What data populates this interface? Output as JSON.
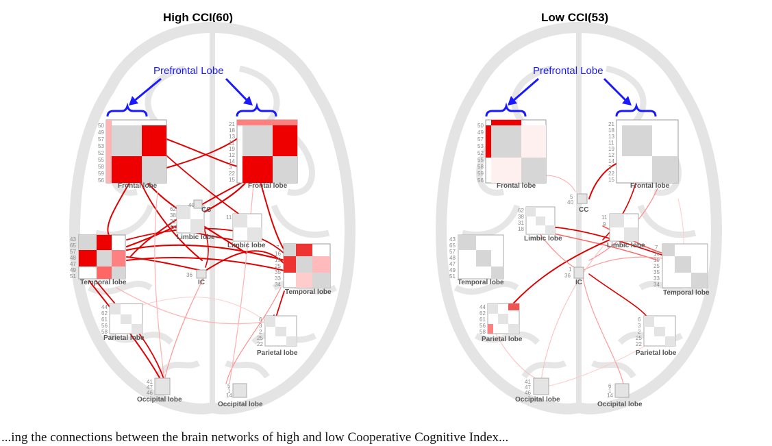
{
  "panels": [
    {
      "title": "High CCI(60)",
      "annotation": "Prefrontal Lobe",
      "regions": [
        {
          "label": "Frontal lobe",
          "ticks": [
            "50",
            "49",
            "57",
            "53",
            "52",
            "55",
            "58",
            "59",
            "56"
          ]
        },
        {
          "label": "Frontal lobe",
          "ticks": [
            "21",
            "18",
            "13",
            "11",
            "19",
            "12",
            "14",
            "3",
            "22",
            "15"
          ]
        },
        {
          "label": "Limbic lobe",
          "ticks": [
            "62",
            "38",
            "31",
            "18"
          ]
        },
        {
          "label": "Limbic lobe",
          "ticks": [
            "11"
          ]
        },
        {
          "label": "CC",
          "ticks": [
            "40"
          ]
        },
        {
          "label": "Temporal lobe",
          "ticks": [
            "43",
            "65",
            "57",
            "48",
            "47",
            "49",
            "51"
          ]
        },
        {
          "label": "Temporal lobe",
          "ticks": [
            "7",
            "16",
            "19",
            "25",
            "35",
            "33",
            "34"
          ]
        },
        {
          "label": "IC",
          "ticks": [
            "36"
          ]
        },
        {
          "label": "Parietal lobe",
          "ticks": [
            "44",
            "62",
            "61",
            "56",
            "58"
          ]
        },
        {
          "label": "Parietal lobe",
          "ticks": [
            "6",
            "3",
            "2",
            "25",
            "22"
          ]
        },
        {
          "label": "Occipital lobe",
          "ticks": [
            "41",
            "47",
            "46"
          ]
        },
        {
          "label": "Occipital lobe",
          "ticks": [
            "5",
            "1",
            "14"
          ]
        }
      ]
    },
    {
      "title": "Low CCI(53)",
      "annotation": "Prefrontal Lobe",
      "regions": [
        {
          "label": "Frontal lobe",
          "ticks": [
            "50",
            "49",
            "57",
            "53",
            "52",
            "55",
            "58",
            "59",
            "56"
          ]
        },
        {
          "label": "Frontal lobe",
          "ticks": [
            "21",
            "18",
            "13",
            "11",
            "19",
            "12",
            "14",
            "3",
            "22",
            "15"
          ]
        },
        {
          "label": "CC",
          "ticks": [
            "5",
            "40"
          ]
        },
        {
          "label": "Limbic lobe",
          "ticks": [
            "62",
            "38",
            "31",
            "18"
          ]
        },
        {
          "label": "Limbic lobe",
          "ticks": [
            "11",
            "9"
          ]
        },
        {
          "label": "Temporal lobe",
          "ticks": [
            "43",
            "65",
            "57",
            "48",
            "47",
            "49",
            "51"
          ]
        },
        {
          "label": "Temporal lobe",
          "ticks": [
            "7",
            "16",
            "19",
            "25",
            "35",
            "33",
            "34"
          ]
        },
        {
          "label": "IC",
          "ticks": [
            "1",
            "36"
          ]
        },
        {
          "label": "Parietal lobe",
          "ticks": [
            "44",
            "62",
            "61",
            "56",
            "58"
          ]
        },
        {
          "label": "Parietal lobe",
          "ticks": [
            "6",
            "3",
            "2",
            "25",
            "22"
          ]
        },
        {
          "label": "Occipital lobe",
          "ticks": [
            "41",
            "47",
            "46"
          ]
        },
        {
          "label": "Occipital lobe",
          "ticks": [
            "6",
            "1",
            "14"
          ]
        }
      ]
    }
  ],
  "caption": "...ing the connections between the brain networks of high and low Cooperative Cognitive Index..."
}
